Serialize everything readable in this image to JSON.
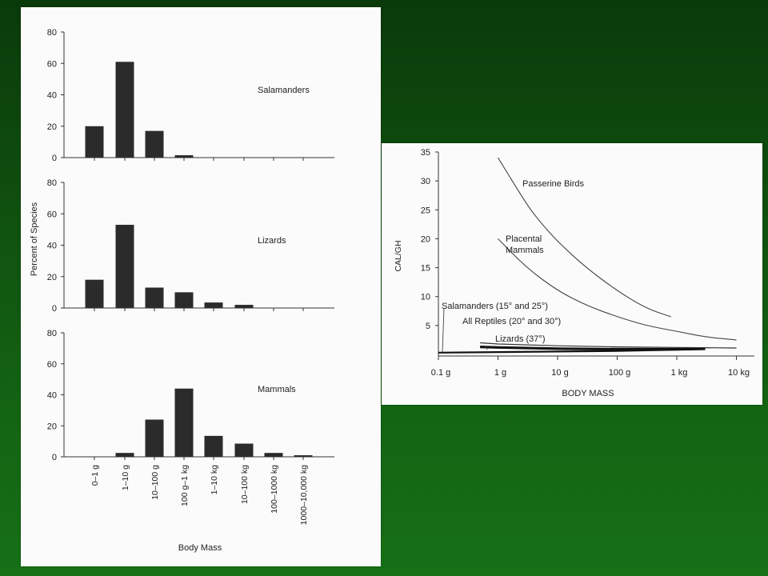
{
  "chart_data": [
    {
      "type": "bar",
      "ylabel": "Percent of Species",
      "xlabel": "Body Mass",
      "ylim": [
        0,
        80
      ],
      "yticks": [
        "0",
        "20",
        "40",
        "60",
        "80"
      ],
      "categories": [
        "0–1 g",
        "1–10 g",
        "10–100 g",
        "100 g–1 kg",
        "1–10 kg",
        "10–100 kg",
        "100–1000 kg",
        "1000–10,000 kg"
      ],
      "series": [
        {
          "name": "Salamanders",
          "values": [
            20,
            61,
            17,
            1.5,
            0,
            0,
            0,
            0
          ]
        },
        {
          "name": "Lizards",
          "values": [
            18,
            53,
            13,
            10,
            3.5,
            2,
            0,
            0
          ]
        },
        {
          "name": "Mammals",
          "values": [
            0,
            2.5,
            24,
            44,
            13.5,
            8.5,
            2.5,
            1
          ]
        }
      ]
    },
    {
      "type": "line",
      "ylabel": "CAL/GH",
      "xlabel": "BODY MASS",
      "ylim": [
        0,
        35
      ],
      "yticks": [
        "5",
        "10",
        "15",
        "20",
        "25",
        "30",
        "35"
      ],
      "xticks": [
        "0.1 g",
        "1 g",
        "10 g",
        "100 g",
        "1 kg",
        "10 kg"
      ],
      "x_scale": "log",
      "series": [
        {
          "name": "Passerine Birds",
          "x_g": [
            1,
            3,
            5,
            10,
            30,
            100,
            300,
            800
          ],
          "y": [
            34,
            26,
            23,
            19.5,
            15,
            11,
            8,
            6.5
          ]
        },
        {
          "name": "Placental Mammals",
          "x_g": [
            1,
            3,
            10,
            30,
            100,
            300,
            1000,
            3000,
            10000
          ],
          "y": [
            20,
            15,
            11,
            8.5,
            6.5,
            5,
            4,
            3,
            2.5
          ]
        },
        {
          "name": "Salamanders (15° and 25°)",
          "x_g": [
            0.1,
            1,
            10,
            100,
            1000,
            3000
          ],
          "y": [
            0.3,
            0.4,
            0.5,
            0.6,
            0.8,
            0.9
          ]
        },
        {
          "name": "All Reptiles (20° and 30°)",
          "x_g": [
            0.5,
            1,
            10,
            100,
            1000,
            3000
          ],
          "y": [
            1.3,
            1.2,
            1.0,
            0.9,
            0.9,
            1.0
          ]
        },
        {
          "name": "Lizards (37°)",
          "x_g": [
            0.5,
            1,
            10,
            100,
            1000,
            10000
          ],
          "y": [
            2.0,
            1.8,
            1.5,
            1.3,
            1.2,
            1.1
          ]
        }
      ]
    }
  ]
}
